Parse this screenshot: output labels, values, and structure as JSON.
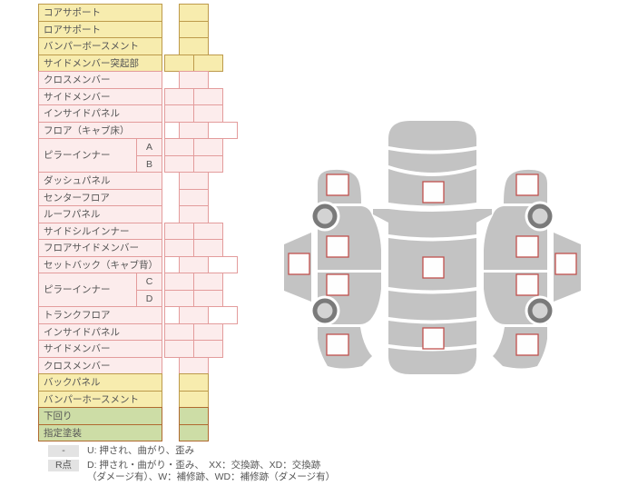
{
  "table": {
    "rows": [
      {
        "label": "コアサポート",
        "color": "yellow",
        "cells": "center"
      },
      {
        "label": "ロアサポート",
        "color": "yellow",
        "cells": "center"
      },
      {
        "label": "バンパーボースメント",
        "color": "yellow",
        "cells": "center"
      },
      {
        "label": "サイドメンバー突起部",
        "color": "yellow",
        "cells": "double"
      },
      {
        "label": "クロスメンバー",
        "color": "pink",
        "cells": "center"
      },
      {
        "label": "サイドメンバー",
        "color": "pink",
        "cells": "double"
      },
      {
        "label": "インサイドパネル",
        "color": "pink",
        "cells": "double"
      },
      {
        "label": "フロア（キャブ床）",
        "color": "pink",
        "cells": "brick"
      },
      {
        "label": "ピラーインナー",
        "sub": "A",
        "color": "pink",
        "cells": "double"
      },
      {
        "sub": "B",
        "color": "pink",
        "cells": "double"
      },
      {
        "label": "ダッシュパネル",
        "color": "pink",
        "cells": "center"
      },
      {
        "label": "センターフロア",
        "color": "pink",
        "cells": "center"
      },
      {
        "label": "ルーフパネル",
        "color": "pink",
        "cells": "center"
      },
      {
        "label": "サイドシルインナー",
        "color": "pink",
        "cells": "double"
      },
      {
        "label": "フロアサイドメンバー",
        "color": "pink",
        "cells": "double"
      },
      {
        "label": "セットバック（キャブ背）",
        "color": "pink",
        "cells": "brick"
      },
      {
        "label": "ピラーインナー",
        "sub": "C",
        "color": "pink",
        "cells": "double"
      },
      {
        "sub": "D",
        "color": "pink",
        "cells": "double"
      },
      {
        "label": "トランクフロア",
        "color": "pink",
        "cells": "brick"
      },
      {
        "label": "インサイドパネル",
        "color": "pink",
        "cells": "double"
      },
      {
        "label": "サイドメンバー",
        "color": "pink",
        "cells": "double"
      },
      {
        "label": "クロスメンバー",
        "color": "pink",
        "cells": "center"
      },
      {
        "label": "バックパネル",
        "color": "yellow",
        "cells": "center"
      },
      {
        "label": "バンパーホースメント",
        "color": "yellow",
        "cells": "center"
      },
      {
        "label": "下回り",
        "color": "green",
        "cells": "center"
      },
      {
        "label": "指定塗装",
        "color": "green",
        "cells": "center"
      }
    ]
  },
  "legend": {
    "rows": [
      {
        "badge": "-",
        "lines": [
          "U: 押され、曲がり、歪み"
        ]
      },
      {
        "badge": "R点",
        "lines": [
          "D: 押され・曲がり・歪み、　XX：交換跡、XD：交換跡",
          "（ダメージ有）、W：補修跡、WD：補修跡（ダメージ有）"
        ]
      }
    ]
  },
  "diagram": {
    "views": [
      "left-side-view",
      "top-view",
      "right-side-view"
    ],
    "checkboxes": [
      "checkbox-left-rocker",
      "checkbox-left-front-fender",
      "checkbox-left-front-door",
      "checkbox-left-rear-door",
      "checkbox-left-rear-fender",
      "checkbox-top-front",
      "checkbox-top-roof",
      "checkbox-top-rear",
      "checkbox-right-rocker",
      "checkbox-right-front-fender",
      "checkbox-right-front-door",
      "checkbox-right-rear-door",
      "checkbox-right-rear-fender"
    ]
  },
  "colors": {
    "yellow_fill": "#f7ecae",
    "yellow_border": "#bd9a4b",
    "pink_fill": "#fcecec",
    "pink_border": "#e39c9c",
    "green_fill": "#cddda6",
    "green_border": "#b06a30",
    "cell_white": "#ffffff",
    "square_border": "#c0504d",
    "square_fill": "#fefefe",
    "silhouette": "#c3c3c3",
    "wheel_ring": "#7a7a7a",
    "wheel_hub": "#d3d3d3",
    "text": "#555555",
    "badge_bg": "#e3e3e3"
  }
}
